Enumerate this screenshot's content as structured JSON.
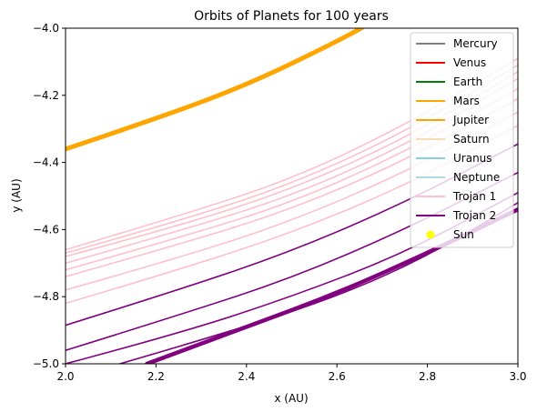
{
  "chart_data": {
    "type": "line",
    "title": "Orbits of Planets for 100 years",
    "xlabel": "x (AU)",
    "ylabel": "y (AU)",
    "xlim": [
      2.0,
      3.0
    ],
    "ylim": [
      -5.0,
      -4.0
    ],
    "xticks": [
      "2.0",
      "2.2",
      "2.4",
      "2.6",
      "2.8",
      "3.0"
    ],
    "yticks": [
      "−5.0",
      "−4.8",
      "−4.6",
      "−4.4",
      "−4.2",
      "−4.0"
    ],
    "grid": false,
    "legend_position": "top-right",
    "legend": [
      {
        "name": "Mercury",
        "color": "#808080",
        "marker": "line"
      },
      {
        "name": "Venus",
        "color": "#ff0000",
        "marker": "line"
      },
      {
        "name": "Earth",
        "color": "#008000",
        "marker": "line"
      },
      {
        "name": "Mars",
        "color": "#ffa500",
        "marker": "line"
      },
      {
        "name": "Jupiter",
        "color": "#ffa500",
        "marker": "line"
      },
      {
        "name": "Saturn",
        "color": "#f5deb3",
        "marker": "line"
      },
      {
        "name": "Uranus",
        "color": "#87ceeb",
        "marker": "line"
      },
      {
        "name": "Neptune",
        "color": "#add8e6",
        "marker": "line"
      },
      {
        "name": "Trojan 1",
        "color": "#ffc0cb",
        "marker": "line"
      },
      {
        "name": "Trojan 2",
        "color": "#800080",
        "marker": "line"
      },
      {
        "name": "Sun",
        "color": "#ffff00",
        "marker": "dot"
      }
    ],
    "series": [
      {
        "name": "Jupiter",
        "color": "#ffa500",
        "width": 5,
        "points": [
          [
            2.0,
            -4.36
          ],
          [
            2.2,
            -4.27
          ],
          [
            2.4,
            -4.17
          ],
          [
            2.6,
            -4.04
          ],
          [
            2.68,
            -3.98
          ]
        ]
      },
      {
        "color": "#ffc0cb",
        "width": 1.6,
        "points": [
          [
            2.0,
            -4.66
          ],
          [
            2.25,
            -4.56
          ],
          [
            2.5,
            -4.45
          ],
          [
            2.75,
            -4.29
          ],
          [
            3.0,
            -4.09
          ]
        ]
      },
      {
        "color": "#ffc0cb",
        "width": 1.6,
        "points": [
          [
            2.0,
            -4.67
          ],
          [
            2.25,
            -4.575
          ],
          [
            2.5,
            -4.465
          ],
          [
            2.75,
            -4.31
          ],
          [
            3.0,
            -4.11
          ]
        ]
      },
      {
        "color": "#ffc0cb",
        "width": 1.6,
        "points": [
          [
            2.0,
            -4.68
          ],
          [
            2.25,
            -4.59
          ],
          [
            2.5,
            -4.48
          ],
          [
            2.75,
            -4.33
          ],
          [
            3.0,
            -4.13
          ]
        ]
      },
      {
        "color": "#ffc0cb",
        "width": 1.6,
        "points": [
          [
            2.0,
            -4.7
          ],
          [
            2.25,
            -4.605
          ],
          [
            2.5,
            -4.5
          ],
          [
            2.75,
            -4.35
          ],
          [
            3.0,
            -4.15
          ]
        ]
      },
      {
        "color": "#ffc0cb",
        "width": 1.6,
        "points": [
          [
            2.0,
            -4.72
          ],
          [
            2.25,
            -4.625
          ],
          [
            2.5,
            -4.52
          ],
          [
            2.75,
            -4.37
          ],
          [
            3.0,
            -4.18
          ]
        ]
      },
      {
        "color": "#ffc0cb",
        "width": 1.6,
        "points": [
          [
            2.0,
            -4.74
          ],
          [
            2.25,
            -4.645
          ],
          [
            2.5,
            -4.54
          ],
          [
            2.75,
            -4.395
          ],
          [
            3.0,
            -4.21
          ]
        ]
      },
      {
        "color": "#ffc0cb",
        "width": 1.6,
        "points": [
          [
            2.0,
            -4.78
          ],
          [
            2.25,
            -4.685
          ],
          [
            2.5,
            -4.575
          ],
          [
            2.75,
            -4.43
          ],
          [
            3.0,
            -4.25
          ]
        ]
      },
      {
        "color": "#ffc0cb",
        "width": 1.6,
        "points": [
          [
            2.0,
            -4.82
          ],
          [
            2.25,
            -4.72
          ],
          [
            2.5,
            -4.61
          ],
          [
            2.75,
            -4.47
          ],
          [
            3.0,
            -4.29
          ]
        ]
      },
      {
        "color": "#800080",
        "width": 1.6,
        "points": [
          [
            2.0,
            -4.885
          ],
          [
            2.25,
            -4.78
          ],
          [
            2.5,
            -4.665
          ],
          [
            2.75,
            -4.52
          ],
          [
            3.0,
            -4.345
          ]
        ]
      },
      {
        "color": "#800080",
        "width": 1.6,
        "points": [
          [
            2.0,
            -4.96
          ],
          [
            2.25,
            -4.855
          ],
          [
            2.5,
            -4.745
          ],
          [
            2.75,
            -4.6
          ],
          [
            3.0,
            -4.43
          ]
        ]
      },
      {
        "color": "#800080",
        "width": 1.6,
        "points": [
          [
            2.0,
            -5.0
          ],
          [
            2.25,
            -4.91
          ],
          [
            2.5,
            -4.8
          ],
          [
            2.75,
            -4.67
          ],
          [
            3.0,
            -4.49
          ]
        ]
      },
      {
        "color": "#800080",
        "width": 1.6,
        "points": [
          [
            2.12,
            -5.0
          ],
          [
            2.35,
            -4.91
          ],
          [
            2.6,
            -4.8
          ],
          [
            2.8,
            -4.68
          ],
          [
            3.0,
            -4.52
          ]
        ]
      },
      {
        "color": "#800080",
        "width": 4.5,
        "points": [
          [
            2.18,
            -5.0
          ],
          [
            2.4,
            -4.89
          ],
          [
            2.6,
            -4.79
          ],
          [
            2.8,
            -4.67
          ],
          [
            3.0,
            -4.54
          ]
        ]
      }
    ]
  }
}
